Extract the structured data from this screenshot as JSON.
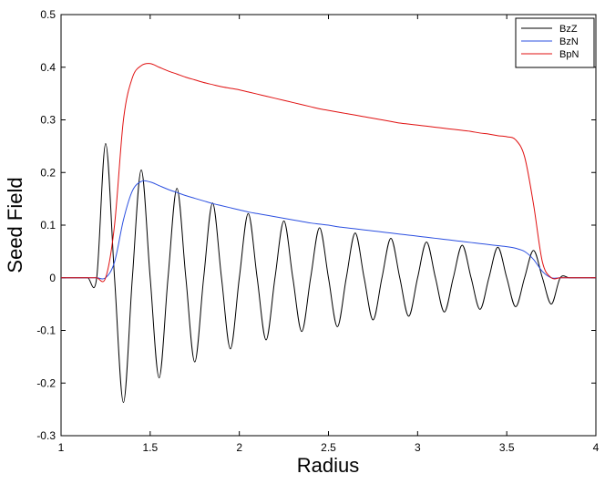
{
  "chart_data": {
    "type": "line",
    "x_label": "Radius",
    "y_label": "Seed Field",
    "x": [
      1.0,
      1.05,
      1.1,
      1.15,
      1.2,
      1.25,
      1.3,
      1.35,
      1.4,
      1.45,
      1.5,
      1.55,
      1.6,
      1.65,
      1.7,
      1.75,
      1.8,
      1.85,
      1.9,
      1.95,
      2.0,
      2.05,
      2.1,
      2.15,
      2.2,
      2.25,
      2.3,
      2.35,
      2.4,
      2.45,
      2.5,
      2.55,
      2.6,
      2.65,
      2.7,
      2.75,
      2.8,
      2.85,
      2.9,
      2.95,
      3.0,
      3.05,
      3.1,
      3.15,
      3.2,
      3.25,
      3.3,
      3.35,
      3.4,
      3.45,
      3.5,
      3.55,
      3.6,
      3.65,
      3.7,
      3.75,
      3.8,
      3.85,
      3.9,
      3.95,
      4.0
    ],
    "series": [
      {
        "name": "BzZ",
        "color": "#000000",
        "values": [
          0,
          0,
          0,
          0,
          0,
          0.255,
          0,
          -0.237,
          0,
          0.205,
          0,
          -0.19,
          0,
          0.17,
          0,
          -0.16,
          0,
          0.142,
          0,
          -0.135,
          0,
          0.122,
          0,
          -0.118,
          0,
          0.108,
          0,
          -0.102,
          0,
          0.095,
          0,
          -0.093,
          0,
          0.085,
          0,
          -0.08,
          0,
          0.075,
          0,
          -0.073,
          0,
          0.068,
          0,
          -0.065,
          0,
          0.062,
          0,
          -0.06,
          0,
          0.058,
          0,
          -0.055,
          0,
          0.052,
          0,
          -0.05,
          0,
          0,
          0,
          0,
          0
        ]
      },
      {
        "name": "BzN",
        "color": "#2b4fe0",
        "values": [
          0,
          0,
          0,
          0,
          0,
          0,
          0.03,
          0.11,
          0.165,
          0.183,
          0.182,
          0.175,
          0.168,
          0.162,
          0.156,
          0.151,
          0.146,
          0.141,
          0.137,
          0.133,
          0.129,
          0.125,
          0.122,
          0.119,
          0.116,
          0.113,
          0.11,
          0.107,
          0.104,
          0.102,
          0.1,
          0.097,
          0.095,
          0.093,
          0.091,
          0.089,
          0.087,
          0.085,
          0.083,
          0.081,
          0.079,
          0.077,
          0.075,
          0.073,
          0.071,
          0.069,
          0.067,
          0.065,
          0.063,
          0.061,
          0.059,
          0.056,
          0.05,
          0.035,
          0.012,
          0,
          0,
          0,
          0,
          0,
          0
        ]
      },
      {
        "name": "BpN",
        "color": "#e01010",
        "values": [
          0,
          0,
          0,
          0,
          0,
          0,
          0.1,
          0.3,
          0.38,
          0.403,
          0.407,
          0.4,
          0.393,
          0.387,
          0.381,
          0.376,
          0.371,
          0.367,
          0.363,
          0.36,
          0.357,
          0.353,
          0.349,
          0.345,
          0.341,
          0.337,
          0.333,
          0.329,
          0.325,
          0.321,
          0.318,
          0.315,
          0.312,
          0.309,
          0.306,
          0.303,
          0.3,
          0.297,
          0.294,
          0.292,
          0.29,
          0.288,
          0.286,
          0.284,
          0.282,
          0.28,
          0.278,
          0.275,
          0.273,
          0.27,
          0.268,
          0.262,
          0.23,
          0.14,
          0.03,
          0,
          0,
          0,
          0,
          0,
          0
        ]
      }
    ],
    "xlim": [
      1,
      4
    ],
    "xticks": [
      1,
      1.5,
      2,
      2.5,
      3,
      3.5,
      4
    ],
    "ylim": [
      -0.3,
      0.5
    ],
    "yticks": [
      -0.3,
      -0.2,
      -0.1,
      0,
      0.1,
      0.2,
      0.3,
      0.4,
      0.5
    ],
    "legend_position": "upper right"
  }
}
